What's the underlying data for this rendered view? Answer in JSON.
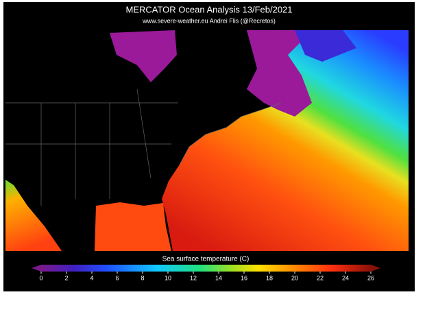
{
  "header": {
    "title": "MERCATOR Ocean Analysis  13/Feb/2021",
    "subtitle": "www.severe-weather.eu  Andrei Flis (@Recretos)"
  },
  "colorbar": {
    "label": "Sea surface temperature (C)",
    "range": [
      0,
      26
    ],
    "ticks": [
      0,
      2,
      4,
      6,
      8,
      10,
      12,
      14,
      16,
      18,
      20,
      22,
      24,
      26
    ]
  }
}
